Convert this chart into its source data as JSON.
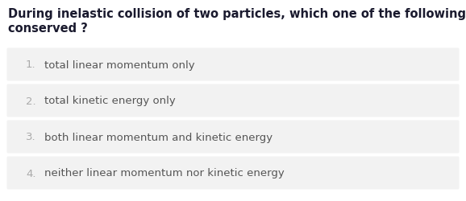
{
  "question_line1": "During inelastic collision of two particles, which one of the following is",
  "question_line2": "conserved ?",
  "options": [
    "total linear momentum only",
    "total kinetic energy only",
    "both linear momentum and kinetic energy",
    "neither linear momentum nor kinetic energy"
  ],
  "background_color": "#ffffff",
  "option_box_color": "#f2f2f2",
  "question_color": "#1a1a2e",
  "option_number_color": "#aaaaaa",
  "option_text_color": "#555555",
  "question_fontsize": 10.5,
  "option_fontsize": 9.5,
  "number_fontsize": 9.5,
  "fig_width": 5.78,
  "fig_height": 2.51,
  "dpi": 100
}
